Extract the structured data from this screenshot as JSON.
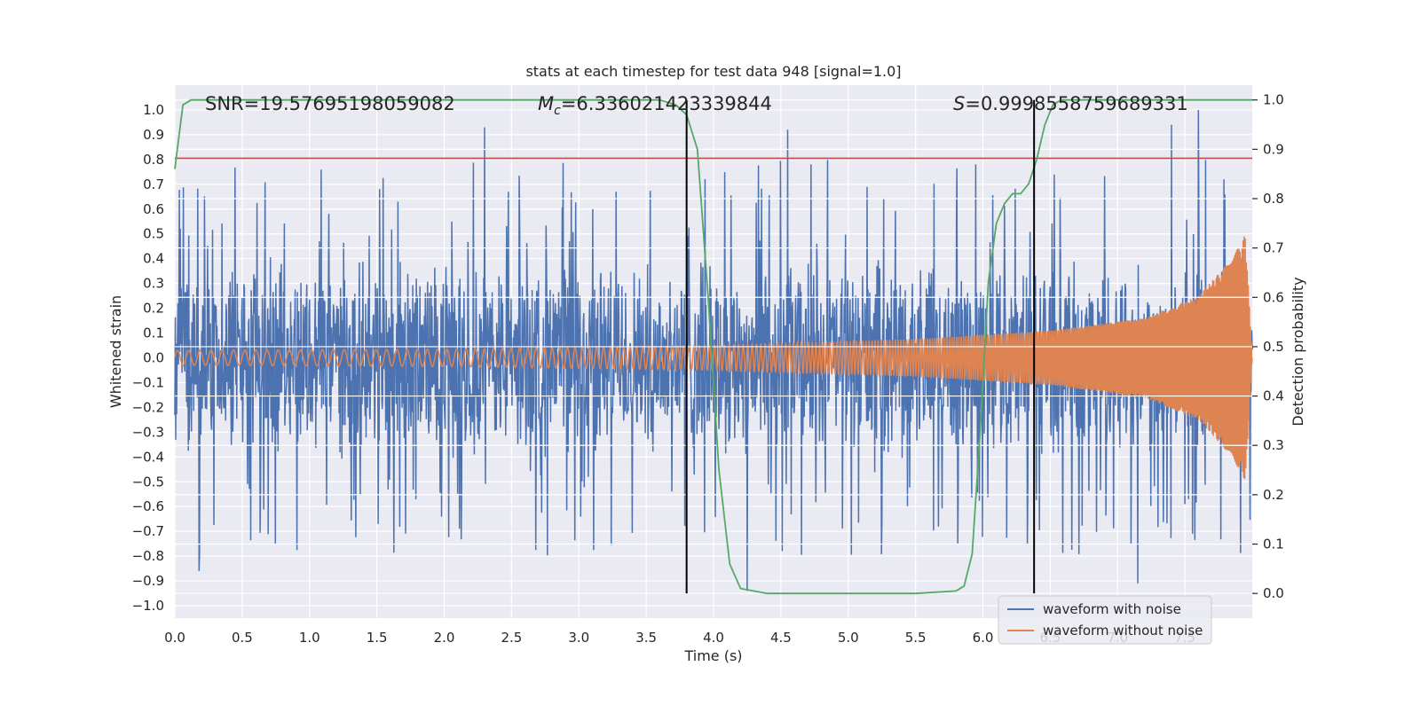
{
  "chart_data": {
    "type": "line",
    "title": "stats at each timestep for test data 948 [signal=1.0]",
    "xlabel": "Time (s)",
    "ylabel_left": "Whitened strain",
    "ylabel_right": "Detection probability",
    "xlim": [
      0.0,
      8.0
    ],
    "ylim_left": [
      -1.05,
      1.1
    ],
    "ylim_right": [
      -0.05,
      1.03
    ],
    "x_ticks": [
      0.0,
      0.5,
      1.0,
      1.5,
      2.0,
      2.5,
      3.0,
      3.5,
      4.0,
      4.5,
      5.0,
      5.5,
      6.0,
      6.5,
      7.0,
      7.5
    ],
    "x_tick_labels": [
      "0.0",
      "0.5",
      "1.0",
      "1.5",
      "2.0",
      "2.5",
      "3.0",
      "3.5",
      "4.0",
      "4.5",
      "5.0",
      "5.5",
      "6.0",
      "6.5",
      "7.0",
      "7.5"
    ],
    "y_ticks_left": [
      -1.0,
      -0.9,
      -0.8,
      -0.7,
      -0.6,
      -0.5,
      -0.4,
      -0.3,
      -0.2,
      -0.1,
      0.0,
      0.1,
      0.2,
      0.3,
      0.4,
      0.5,
      0.6,
      0.7,
      0.8,
      0.9,
      1.0
    ],
    "y_tick_labels_left": [
      "−1.0",
      "−0.9",
      "−0.8",
      "−0.7",
      "−0.6",
      "−0.5",
      "−0.4",
      "−0.3",
      "−0.2",
      "−0.1",
      "0.0",
      "0.1",
      "0.2",
      "0.3",
      "0.4",
      "0.5",
      "0.6",
      "0.7",
      "0.8",
      "0.9",
      "1.0"
    ],
    "y_ticks_right": [
      0.0,
      0.1,
      0.2,
      0.3,
      0.4,
      0.5,
      0.6,
      0.7,
      0.8,
      0.9,
      1.0
    ],
    "y_tick_labels_right": [
      "0.0",
      "0.1",
      "0.2",
      "0.3",
      "0.4",
      "0.5",
      "0.6",
      "0.7",
      "0.8",
      "0.9",
      "1.0"
    ],
    "grid": true,
    "annotations": {
      "snr": "SNR=19.57695198059082",
      "mc_symbol": "M",
      "mc_sub": "c",
      "mc_value": "=6.336021423339844",
      "s_symbol": "S",
      "s_value": "=0.9998558759689331"
    },
    "series": [
      {
        "name": "waveform with noise",
        "color": "#4c72b0",
        "description_kind": "noise_band",
        "band_core": [
          -0.38,
          0.4
        ],
        "spike_max": 1.0,
        "spike_min": -0.94,
        "x_range": [
          0.0,
          8.0
        ]
      },
      {
        "name": "waveform without noise",
        "color": "#dd8452",
        "kind": "chirp",
        "amplitude_points": [
          [
            0.0,
            0.03
          ],
          [
            2.0,
            0.035
          ],
          [
            4.0,
            0.05
          ],
          [
            5.5,
            0.075
          ],
          [
            6.5,
            0.11
          ],
          [
            7.2,
            0.16
          ],
          [
            7.6,
            0.25
          ],
          [
            7.85,
            0.4
          ],
          [
            7.95,
            0.5
          ],
          [
            8.0,
            0.0
          ]
        ],
        "x_range": [
          0.0,
          8.0
        ]
      },
      {
        "name": "",
        "color": "#55a868",
        "axis": "right",
        "x": [
          0.0,
          0.06,
          0.12,
          0.5,
          1.0,
          2.0,
          3.0,
          3.6,
          3.72,
          3.8,
          3.88,
          3.96,
          4.04,
          4.12,
          4.2,
          4.4,
          5.0,
          5.5,
          5.8,
          5.86,
          5.92,
          5.98,
          6.04,
          6.1,
          6.16,
          6.22,
          6.28,
          6.34,
          6.4,
          6.46,
          6.52,
          6.58,
          6.7,
          7.0,
          7.5,
          8.0
        ],
        "y": [
          0.86,
          0.99,
          1.0,
          1.0,
          1.0,
          1.0,
          1.0,
          1.0,
          0.99,
          0.97,
          0.9,
          0.6,
          0.25,
          0.06,
          0.01,
          0.0,
          0.0,
          0.0,
          0.005,
          0.015,
          0.08,
          0.33,
          0.63,
          0.75,
          0.79,
          0.81,
          0.81,
          0.83,
          0.88,
          0.95,
          0.99,
          1.0,
          1.0,
          1.0,
          1.0,
          1.0
        ]
      }
    ],
    "hlines_left": [
      {
        "y": 0.805,
        "color": "#c44e52"
      }
    ],
    "vlines": [
      {
        "x": 3.8,
        "color": "#000000"
      },
      {
        "x": 6.38,
        "color": "#000000"
      }
    ],
    "legend": {
      "placement": "lower-right",
      "entries": [
        "waveform with noise",
        "waveform without noise"
      ]
    }
  }
}
